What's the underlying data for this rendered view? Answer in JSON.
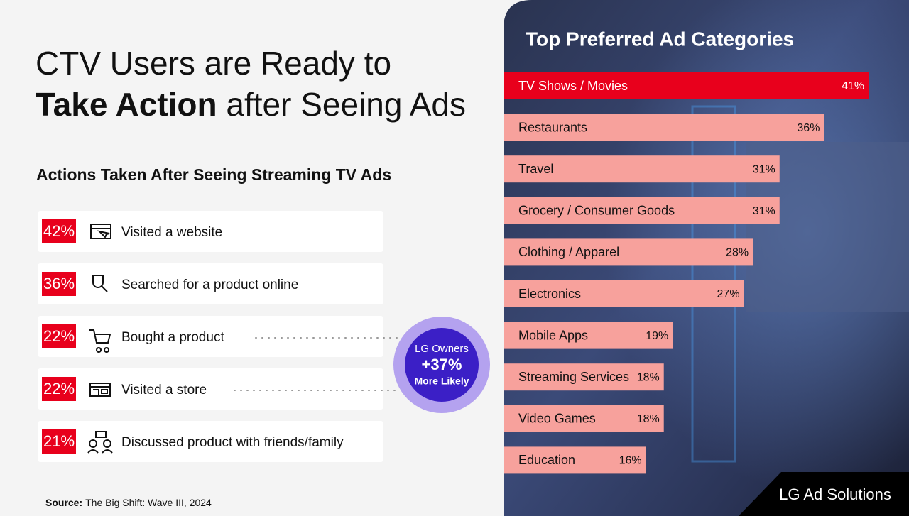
{
  "headline": {
    "line1": "CTV Users are Ready to",
    "bold": "Take Action",
    "rest": " after Seeing Ads"
  },
  "actions": {
    "title": "Actions Taken After Seeing Streaming TV Ads",
    "items": [
      {
        "percent": "42%",
        "label": "Visited a website"
      },
      {
        "percent": "36%",
        "label": "Searched for a product online"
      },
      {
        "percent": "22%",
        "label": "Bought a product"
      },
      {
        "percent": "22%",
        "label": "Visited a store"
      },
      {
        "percent": "21%",
        "label": "Discussed product with friends/family"
      }
    ]
  },
  "badge": {
    "line1": "LG Owners",
    "value": "+37%",
    "line3": "More Likely"
  },
  "source": {
    "label": "Source:",
    "text": "The Big Shift: Wave III, 2024"
  },
  "logo": "LG Ad Solutions",
  "chart_data": {
    "type": "bar",
    "orientation": "horizontal",
    "title": "Top Preferred Ad Categories",
    "categories": [
      "TV Shows / Movies",
      "Restaurants",
      "Travel",
      "Grocery / Consumer Goods",
      "Clothing / Apparel",
      "Electronics",
      "Mobile Apps",
      "Streaming Services",
      "Video Games",
      "Education"
    ],
    "values": [
      41,
      36,
      31,
      31,
      28,
      27,
      19,
      18,
      18,
      16
    ],
    "value_labels": [
      "41%",
      "36%",
      "31%",
      "31%",
      "28%",
      "27%",
      "19%",
      "18%",
      "18%",
      "16%"
    ],
    "colors": [
      "#e8001c",
      "#f7a19c",
      "#f7a19c",
      "#f7a19c",
      "#f7a19c",
      "#f7a19c",
      "#f7a19c",
      "#f7a19c",
      "#f7a19c",
      "#f7a19c"
    ]
  }
}
